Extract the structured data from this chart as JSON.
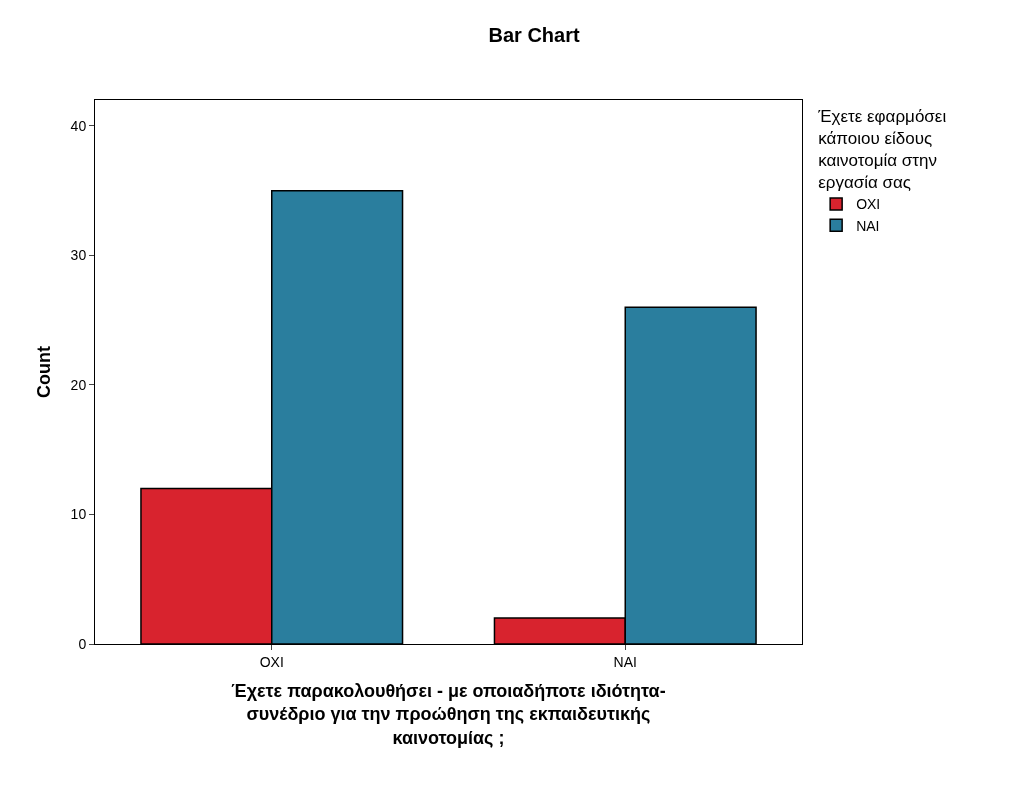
{
  "chart_data": {
    "type": "bar",
    "title": "Bar Chart",
    "xlabel": "Έχετε παρακολουθήσει - με οποιαδήποτε ιδιότητα- συνέδριο για την προώθηση της εκπαιδευτικής καινοτομίας ;",
    "ylabel": "Count",
    "legend_title": "Έχετε εφαρμόσει κάποιου είδους καινοτομία στην εργασία σας",
    "categories": [
      "ΟΧΙ",
      "ΝΑΙ"
    ],
    "series": [
      {
        "name": "ΟΧΙ",
        "color": "#d8232e",
        "values": [
          12,
          2
        ]
      },
      {
        "name": "ΝΑΙ",
        "color": "#2a7e9e",
        "values": [
          35,
          26
        ]
      }
    ],
    "ylim": [
      0,
      42
    ],
    "yticks": [
      0,
      10,
      20,
      30,
      40
    ],
    "legend": "top right"
  }
}
